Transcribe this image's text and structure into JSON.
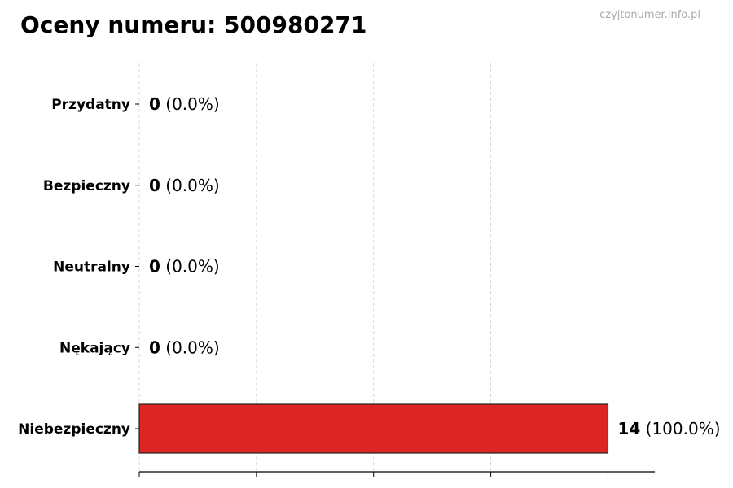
{
  "watermark": "czyjtonumer.info.pl",
  "chart_data": {
    "type": "bar",
    "orientation": "horizontal",
    "title": "Oceny numeru: 500980271",
    "categories": [
      "Przydatny",
      "Bezpieczny",
      "Neutralny",
      "Nękający",
      "Niebezpieczny"
    ],
    "values": [
      0,
      0,
      0,
      0,
      14
    ],
    "labels": [
      {
        "count": "0",
        "percent": "(0.0%)"
      },
      {
        "count": "0",
        "percent": "(0.0%)"
      },
      {
        "count": "0",
        "percent": "(0.0%)"
      },
      {
        "count": "0",
        "percent": "(0.0%)"
      },
      {
        "count": "14",
        "percent": "(100.0%)"
      }
    ],
    "bar_color": "#dc2626",
    "xlim": [
      0,
      15.4
    ],
    "xticks": [
      0,
      3.5,
      7,
      10.5,
      14
    ],
    "xtick_labels_shown": false,
    "grid": "vertical dashed",
    "xlabel": "",
    "ylabel": ""
  }
}
